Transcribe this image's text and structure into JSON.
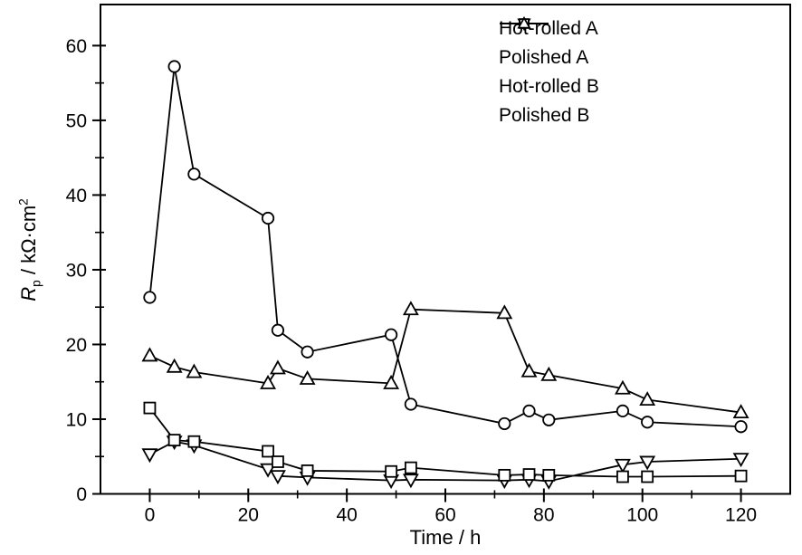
{
  "chart_data": {
    "type": "line",
    "title": "",
    "xlabel": "Time / h",
    "ylabel": "Rp / kΩ·cm2",
    "ylabel_parts": {
      "symbol": "R",
      "subscript": "p",
      "units": " / kΩ·cm",
      "superscript": "2"
    },
    "xlim": [
      -10,
      130
    ],
    "ylim": [
      0,
      65.5
    ],
    "x_ticks": [
      0,
      20,
      40,
      60,
      80,
      100,
      120
    ],
    "x_minor_ticks": [
      10,
      30,
      50,
      70,
      90,
      110
    ],
    "y_ticks": [
      0,
      10,
      20,
      30,
      40,
      50,
      60
    ],
    "y_minor_ticks": [
      5,
      15,
      25,
      35,
      45,
      55
    ],
    "grid": false,
    "legend_position": "top-right-inside",
    "background_color": "#ffffff",
    "line_color": "#000000",
    "marker_fill": "#ffffff",
    "x": [
      0,
      5,
      9,
      24,
      26,
      32,
      49,
      53,
      72,
      77,
      81,
      96,
      101,
      120
    ],
    "series": [
      {
        "name": "Hot-rolled A",
        "marker": "triangle-down",
        "values": [
          5.3,
          7.0,
          6.5,
          3.3,
          2.4,
          2.2,
          1.8,
          1.9,
          1.8,
          1.9,
          1.7,
          3.9,
          4.3,
          4.7
        ]
      },
      {
        "name": "Polished A",
        "marker": "circle",
        "values": [
          26.3,
          57.2,
          42.8,
          36.9,
          21.9,
          19.0,
          21.3,
          12.0,
          9.4,
          11.1,
          9.9,
          11.1,
          9.6,
          9.0
        ]
      },
      {
        "name": "Hot-rolled B",
        "marker": "square",
        "values": [
          11.5,
          7.2,
          7.0,
          5.7,
          4.3,
          3.1,
          3.0,
          3.5,
          2.5,
          2.6,
          2.5,
          2.3,
          2.3,
          2.4
        ]
      },
      {
        "name": "Polished B",
        "marker": "triangle-up",
        "values": [
          18.5,
          17.0,
          16.3,
          14.8,
          16.8,
          15.4,
          14.8,
          24.7,
          24.2,
          16.4,
          15.9,
          14.1,
          12.6,
          10.9
        ]
      }
    ]
  }
}
